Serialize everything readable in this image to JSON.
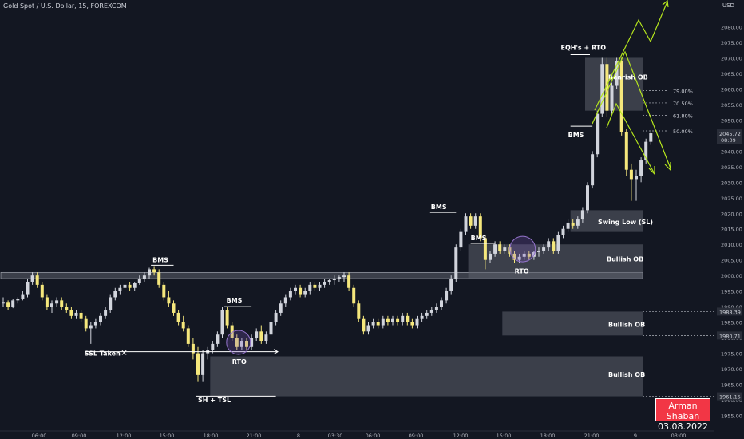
{
  "header": {
    "symbol": "Gold Spot / U.S. Dollar, 15, FOREXCOM",
    "currency": "USD"
  },
  "author": {
    "name": "Arman Shaban",
    "date": "03.08.2022"
  },
  "colors": {
    "background": "#131722",
    "bull_candle": "#d1d4dc",
    "bear_candle": "#f5e77c",
    "zone": "#5d606b",
    "arrow": "#b5e61d",
    "badge": "#f23645"
  },
  "chart_data": {
    "type": "candlestick",
    "ylim": [
      1950,
      2085
    ],
    "y_ticks": [
      1955,
      1960,
      1965,
      1970,
      1975,
      1980,
      1985,
      1990,
      1995,
      2000,
      2005,
      2010,
      2015,
      2020,
      2025,
      2030,
      2035,
      2040,
      2045,
      2050,
      2055,
      2060,
      2065,
      2070,
      2075,
      2080
    ],
    "top_tick": "2080.00",
    "x_ticks": [
      "06:00",
      "09:00",
      "12:00",
      "15:00",
      "18:00",
      "21:00",
      "8",
      "03:30",
      "06:00",
      "09:00",
      "12:00",
      "15:00",
      "18:00",
      "21:00",
      "9",
      "03:00"
    ],
    "price_labels": [
      {
        "value": 1988.39,
        "text": "1988.39"
      },
      {
        "value": 1980.71,
        "text": "1980.71"
      },
      {
        "value": 1961.15,
        "text": "1961.15"
      }
    ],
    "current_price": {
      "value": 2045.72,
      "text": "2045.72",
      "countdown": "08:09"
    },
    "candles": [
      [
        1991,
        1993,
        1990,
        1991.5
      ],
      [
        1991.5,
        1992,
        1989,
        1990
      ],
      [
        1990,
        1992.5,
        1989.5,
        1992
      ],
      [
        1992,
        1993,
        1991,
        1992.5
      ],
      [
        1992.5,
        1995,
        1992,
        1994
      ],
      [
        1994,
        1999,
        1993,
        1998
      ],
      [
        1998,
        2001,
        1997,
        2000
      ],
      [
        2000,
        2001,
        1996,
        1997
      ],
      [
        1997,
        1998,
        1992,
        1993
      ],
      [
        1993,
        1994,
        1989,
        1990
      ],
      [
        1990,
        1992,
        1988,
        1991
      ],
      [
        1991,
        1993,
        1990,
        1992
      ],
      [
        1992,
        1993,
        1989,
        1990
      ],
      [
        1990,
        1991,
        1988,
        1989
      ],
      [
        1989,
        1990,
        1986,
        1987
      ],
      [
        1987,
        1989,
        1986,
        1988
      ],
      [
        1988,
        1989,
        1985,
        1986
      ],
      [
        1986,
        1987,
        1982,
        1983
      ],
      [
        1983,
        1985,
        1978,
        1984
      ],
      [
        1984,
        1986,
        1983,
        1985
      ],
      [
        1985,
        1988,
        1984,
        1987
      ],
      [
        1987,
        1990,
        1986,
        1989
      ],
      [
        1989,
        1994,
        1988,
        1993
      ],
      [
        1993,
        1996,
        1992,
        1995
      ],
      [
        1995,
        1997,
        1994,
        1996
      ],
      [
        1996,
        1998,
        1995,
        1997
      ],
      [
        1997,
        1998,
        1995,
        1996
      ],
      [
        1996,
        1998,
        1995,
        1997.5
      ],
      [
        1997.5,
        2000,
        1997,
        1999
      ],
      [
        1999,
        2001,
        1998,
        2000
      ],
      [
        2000,
        2002.5,
        1999,
        2002
      ],
      [
        2002,
        2003,
        2000,
        2001
      ],
      [
        2001,
        2002,
        1996,
        1997
      ],
      [
        1997,
        1998,
        1992,
        1993
      ],
      [
        1993,
        1995,
        1990,
        1991
      ],
      [
        1991,
        1992,
        1987,
        1988
      ],
      [
        1988,
        1989,
        1984,
        1985
      ],
      [
        1985,
        1987,
        1982,
        1983
      ],
      [
        1983,
        1984,
        1977,
        1978
      ],
      [
        1978,
        1980,
        1973,
        1975
      ],
      [
        1975,
        1977,
        1966,
        1968
      ],
      [
        1968,
        1976,
        1966,
        1975
      ],
      [
        1975,
        1977,
        1973,
        1976
      ],
      [
        1976,
        1979,
        1975,
        1978
      ],
      [
        1978,
        1982,
        1977,
        1981
      ],
      [
        1981,
        1990,
        1980,
        1989
      ],
      [
        1989,
        1990,
        1983,
        1984
      ],
      [
        1984,
        1985,
        1979,
        1980
      ],
      [
        1980,
        1981,
        1976,
        1977
      ],
      [
        1977,
        1980,
        1976,
        1979
      ],
      [
        1979,
        1980,
        1976,
        1977
      ],
      [
        1977,
        1981,
        1976,
        1980
      ],
      [
        1980,
        1983,
        1979,
        1982
      ],
      [
        1982,
        1984,
        1978,
        1979
      ],
      [
        1979,
        1982,
        1978,
        1981
      ],
      [
        1981,
        1986,
        1980,
        1985
      ],
      [
        1985,
        1989,
        1984,
        1988
      ],
      [
        1988,
        1992,
        1987,
        1991
      ],
      [
        1991,
        1994,
        1990,
        1993
      ],
      [
        1993,
        1996,
        1992,
        1995
      ],
      [
        1995,
        1997,
        1994,
        1996
      ],
      [
        1996,
        1997,
        1993,
        1994
      ],
      [
        1994,
        1996,
        1993,
        1995
      ],
      [
        1995,
        1998,
        1994,
        1997
      ],
      [
        1997,
        1998,
        1995,
        1996
      ],
      [
        1996,
        1998,
        1995,
        1997
      ],
      [
        1997,
        1999,
        1996,
        1998
      ],
      [
        1998,
        1999,
        1997,
        1998.5
      ],
      [
        1998.5,
        2000,
        1997,
        1999
      ],
      [
        1999,
        2000,
        1998,
        1999.5
      ],
      [
        1999.5,
        2001,
        1998,
        2000
      ],
      [
        2000,
        2001,
        1995,
        1996
      ],
      [
        1996,
        1997,
        1990,
        1991
      ],
      [
        1991,
        1992,
        1985,
        1986
      ],
      [
        1986,
        1987,
        1981,
        1982
      ],
      [
        1982,
        1985,
        1981,
        1984
      ],
      [
        1984,
        1986,
        1983,
        1985
      ],
      [
        1985,
        1986,
        1983,
        1984
      ],
      [
        1984,
        1987,
        1983,
        1986
      ],
      [
        1986,
        1987,
        1984,
        1985
      ],
      [
        1985,
        1987,
        1984,
        1986
      ],
      [
        1986,
        1987,
        1984,
        1985
      ],
      [
        1985,
        1988,
        1984,
        1987
      ],
      [
        1987,
        1988,
        1984,
        1985
      ],
      [
        1985,
        1986,
        1983,
        1984
      ],
      [
        1984,
        1987,
        1983,
        1986
      ],
      [
        1986,
        1988,
        1985,
        1987
      ],
      [
        1987,
        1989,
        1986,
        1988
      ],
      [
        1988,
        1990,
        1987,
        1989
      ],
      [
        1989,
        1991,
        1988,
        1990
      ],
      [
        1990,
        1993,
        1989,
        1992
      ],
      [
        1992,
        1996,
        1991,
        1995
      ],
      [
        1995,
        2000,
        1994,
        1999
      ],
      [
        1999,
        2010,
        1998,
        2009
      ],
      [
        2009,
        2015,
        2008,
        2014
      ],
      [
        2014,
        2020,
        2013,
        2019
      ],
      [
        2019,
        2020,
        2015,
        2016
      ],
      [
        2016,
        2020,
        2015,
        2019
      ],
      [
        2019,
        2020,
        2011,
        2012
      ],
      [
        2012,
        2013,
        2002,
        2005
      ],
      [
        2005,
        2008,
        2004,
        2007
      ],
      [
        2007,
        2011,
        2006,
        2010
      ],
      [
        2010,
        2011,
        2007,
        2008
      ],
      [
        2008,
        2010,
        2007,
        2009
      ],
      [
        2009,
        2010,
        2006,
        2007
      ],
      [
        2007,
        2008,
        2004,
        2005
      ],
      [
        2005,
        2007,
        2004,
        2006
      ],
      [
        2006,
        2008,
        2005,
        2007
      ],
      [
        2007,
        2008,
        2005,
        2006
      ],
      [
        2006,
        2008,
        2005,
        2007.5
      ],
      [
        2007.5,
        2009,
        2006,
        2008
      ],
      [
        2008,
        2010,
        2007,
        2009
      ],
      [
        2009,
        2012,
        2008,
        2011
      ],
      [
        2011,
        2012,
        2007,
        2008
      ],
      [
        2008,
        2014,
        2007,
        2013
      ],
      [
        2013,
        2016,
        2012,
        2015
      ],
      [
        2015,
        2018,
        2014,
        2017
      ],
      [
        2017,
        2018,
        2015,
        2016
      ],
      [
        2016,
        2019,
        2015,
        2018
      ],
      [
        2018,
        2022,
        2017,
        2021
      ],
      [
        2021,
        2030,
        2020,
        2029
      ],
      [
        2029,
        2040,
        2028,
        2039
      ],
      [
        2039,
        2053,
        2038,
        2052
      ],
      [
        2052,
        2070,
        2051,
        2068
      ],
      [
        2068,
        2070,
        2051,
        2053
      ],
      [
        2053,
        2062,
        2052,
        2061
      ],
      [
        2061,
        2070,
        2060,
        2069
      ],
      [
        2069,
        2070,
        2045,
        2046
      ],
      [
        2046,
        2047,
        2032,
        2034
      ],
      [
        2034,
        2036,
        2024,
        2031
      ],
      [
        2031,
        2034,
        2024,
        2032
      ],
      [
        2032,
        2038,
        2030,
        2037
      ],
      [
        2037,
        2044,
        2036,
        2043
      ],
      [
        2043,
        2046,
        2042,
        2045.72
      ]
    ],
    "zones": [
      {
        "name": "Resistance line",
        "from": 2001,
        "to": 1999,
        "x0": 0,
        "x1": 127
      },
      {
        "name": "Bullish OB",
        "from": 1988.39,
        "to": 1980.71,
        "x0": 103,
        "x1": 127
      },
      {
        "name": "Bullish OB",
        "from": 1974,
        "to": 1961.15,
        "x0": 43,
        "x1": 127
      },
      {
        "name": "Bullish OB",
        "from": 2010,
        "to": 1999,
        "x0": 96,
        "x1": 127
      },
      {
        "name": "Swing Low (SL)",
        "from": 2021,
        "to": 2014,
        "x0": 117,
        "x1": 127
      },
      {
        "name": "Bearish OB",
        "from": 2070,
        "to": 2053,
        "x0": 120,
        "x1": 127
      }
    ],
    "fib_levels": [
      {
        "value": 2059.5,
        "label": "79.00%"
      },
      {
        "value": 2055.5,
        "label": "70.50%"
      },
      {
        "value": 2051.5,
        "label": "61.80%"
      },
      {
        "value": 2046.5,
        "label": "50.00%"
      }
    ],
    "annotations": {
      "bms": "BMS",
      "rto": "RTO",
      "ssl": "SSL Taken",
      "x_mark": "✕",
      "sh_tsl": "SH + TSL",
      "eqh": "EQH's + RTO",
      "bearish_ob": "Bearish OB",
      "bullish_ob": "Bullish  OB",
      "bullish_ob2": "Bullish OB",
      "bullish_ob3": "Bullish OB",
      "swing_low": "Swing Low (SL)"
    }
  }
}
